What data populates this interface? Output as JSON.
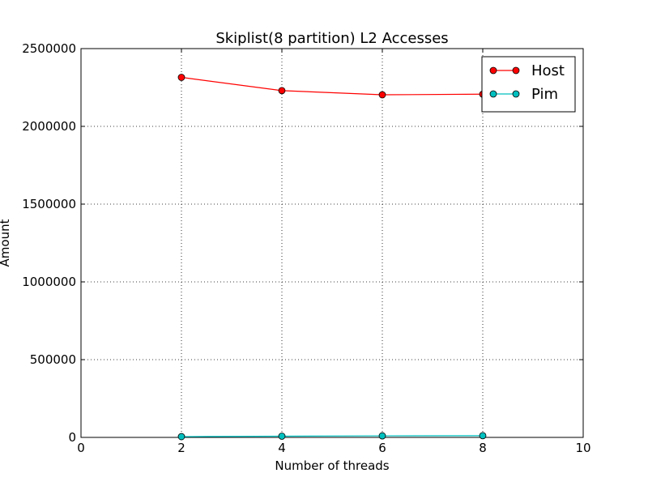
{
  "chart_data": {
    "type": "line",
    "title": "Skiplist(8 partition) L2 Accesses",
    "xlabel": "Number of threads",
    "ylabel": "Amount",
    "xlim": [
      0,
      10
    ],
    "ylim": [
      0,
      2500000
    ],
    "xticks": [
      0,
      2,
      4,
      6,
      8,
      10
    ],
    "yticks": [
      0,
      500000,
      1000000,
      1500000,
      2000000,
      2500000
    ],
    "xtick_labels": [
      "0",
      "2",
      "4",
      "6",
      "8",
      "10"
    ],
    "ytick_labels": [
      "0",
      "500000",
      "1000000",
      "1500000",
      "2000000",
      "2500000"
    ],
    "grid": true,
    "legend_position": "top-right",
    "series": [
      {
        "name": "Host",
        "color": "#ff0000",
        "marker": "circle",
        "x": [
          2,
          4,
          6,
          8
        ],
        "y": [
          2315000,
          2230000,
          2203000,
          2207000
        ]
      },
      {
        "name": "Pim",
        "color": "#00bfbf",
        "marker": "circle",
        "x": [
          2,
          4,
          6,
          8
        ],
        "y": [
          5000,
          8000,
          10000,
          11000
        ]
      }
    ]
  }
}
